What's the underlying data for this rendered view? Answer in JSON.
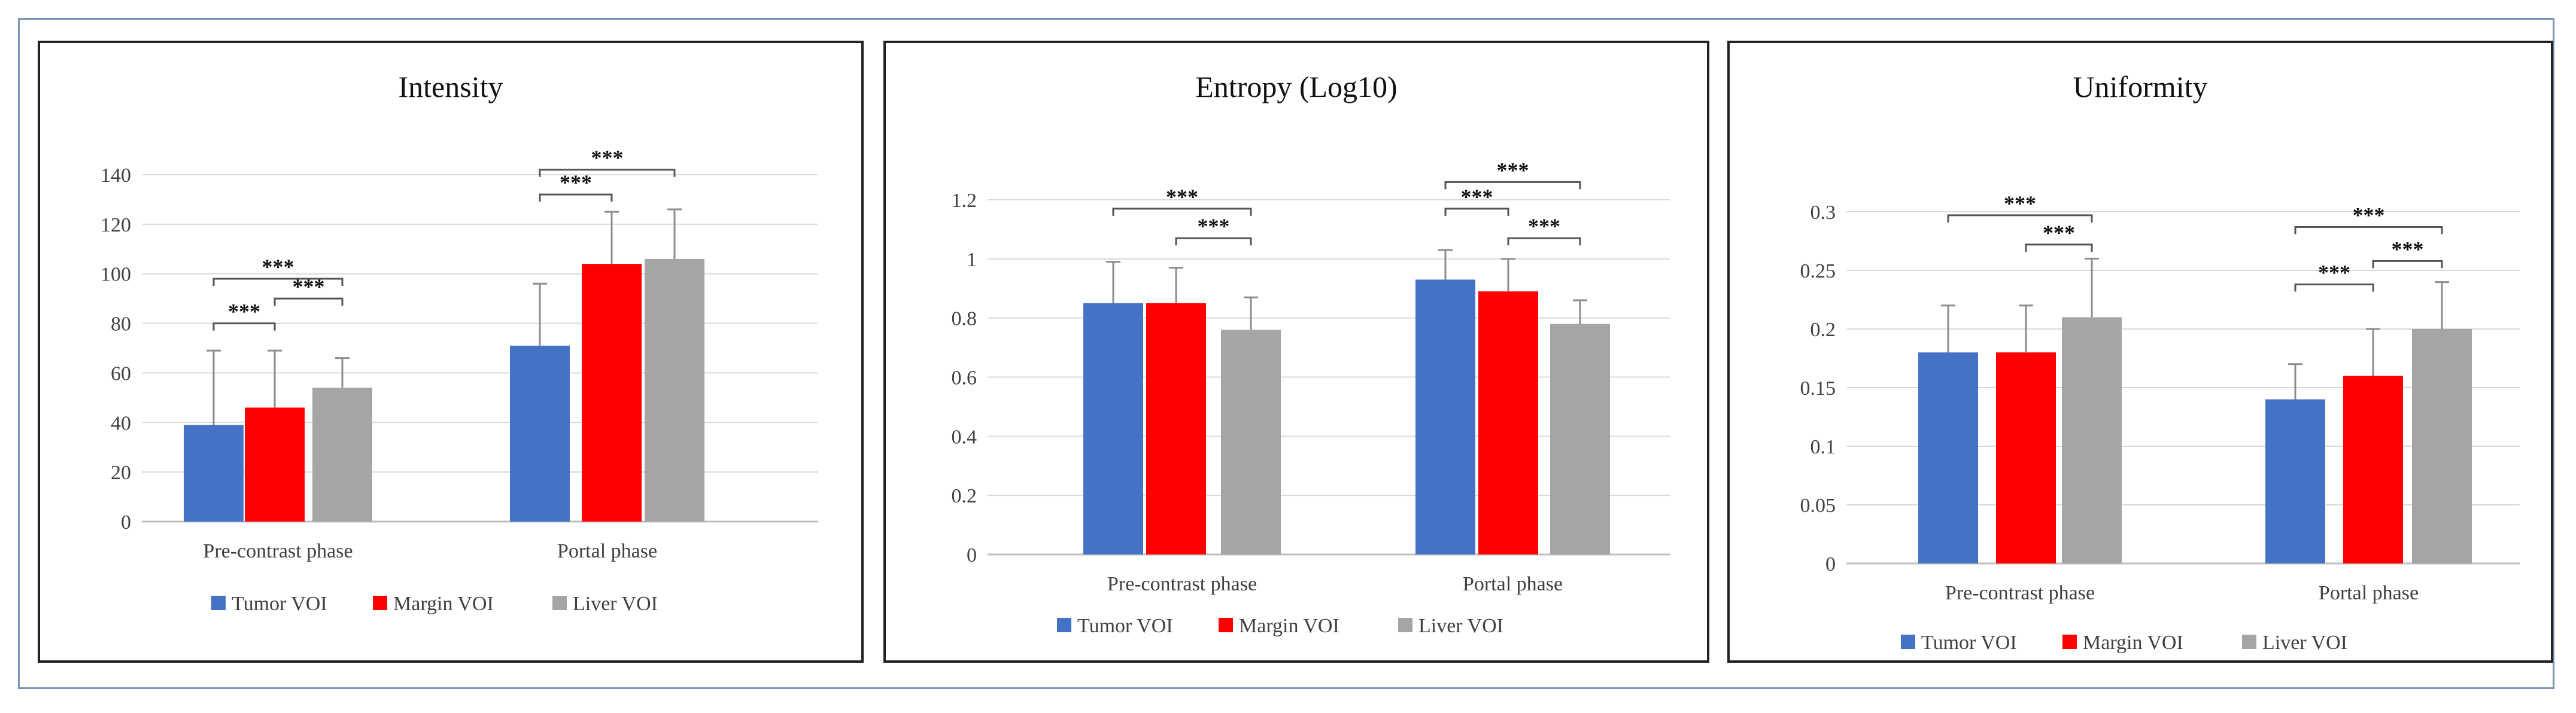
{
  "chart_data": [
    {
      "type": "bar",
      "title": "Intensity",
      "categories": [
        "Pre-contrast phase",
        "Portal phase"
      ],
      "ylim": [
        0,
        140
      ],
      "yticks": [
        0,
        20,
        40,
        60,
        80,
        100,
        120,
        140
      ],
      "ytick_labels": [
        "0",
        "20",
        "40",
        "60",
        "80",
        "100",
        "120",
        "140"
      ],
      "grid": true,
      "legend_position": "bottom",
      "series": [
        {
          "name": "Tumor VOI",
          "color": "#4472C4",
          "values": [
            39,
            71
          ],
          "errors": [
            30,
            25
          ]
        },
        {
          "name": "Margin VOI",
          "color": "#FF0000",
          "values": [
            46,
            104
          ],
          "errors": [
            23,
            21
          ]
        },
        {
          "name": "Liver VOI",
          "color": "#A5A5A5",
          "values": [
            54,
            106
          ],
          "errors": [
            12,
            20
          ]
        }
      ],
      "annotations": [
        {
          "category": 0,
          "from": 0,
          "to": 1,
          "text": "***",
          "level": 80
        },
        {
          "category": 0,
          "from": 1,
          "to": 2,
          "text": "***",
          "level": 90
        },
        {
          "category": 0,
          "from": 0,
          "to": 2,
          "text": "***",
          "level": 98
        },
        {
          "category": 1,
          "from": 0,
          "to": 1,
          "text": "***",
          "level": 132
        },
        {
          "category": 1,
          "from": 0,
          "to": 2,
          "text": "***",
          "level": 142
        }
      ]
    },
    {
      "type": "bar",
      "title": "Entropy (Log10)",
      "categories": [
        "Pre-contrast phase",
        "Portal phase"
      ],
      "ylim": [
        0,
        1.2
      ],
      "yticks": [
        0,
        0.2,
        0.4,
        0.6,
        0.8,
        1.0,
        1.2
      ],
      "ytick_labels": [
        "0",
        "0.2",
        "0.4",
        "0.6",
        "0.8",
        "1",
        "1.2"
      ],
      "grid": true,
      "legend_position": "bottom",
      "series": [
        {
          "name": "Tumor VOI",
          "color": "#4472C4",
          "values": [
            0.85,
            0.93
          ],
          "errors": [
            0.14,
            0.1
          ]
        },
        {
          "name": "Margin VOI",
          "color": "#FF0000",
          "values": [
            0.85,
            0.89
          ],
          "errors": [
            0.12,
            0.11
          ]
        },
        {
          "name": "Liver VOI",
          "color": "#A5A5A5",
          "values": [
            0.76,
            0.78
          ],
          "errors": [
            0.11,
            0.08
          ]
        }
      ],
      "annotations": [
        {
          "category": 0,
          "from": 1,
          "to": 2,
          "text": "***",
          "level": 1.07
        },
        {
          "category": 0,
          "from": 0,
          "to": 2,
          "text": "***",
          "level": 1.17
        },
        {
          "category": 1,
          "from": 0,
          "to": 1,
          "text": "***",
          "level": 1.17
        },
        {
          "category": 1,
          "from": 1,
          "to": 2,
          "text": "***",
          "level": 1.07
        },
        {
          "category": 1,
          "from": 0,
          "to": 2,
          "text": "***",
          "level": 1.26
        }
      ]
    },
    {
      "type": "bar",
      "title": "Uniformity",
      "categories": [
        "Pre-contrast phase",
        "Portal phase"
      ],
      "ylim": [
        0,
        0.3
      ],
      "yticks": [
        0,
        0.05,
        0.1,
        0.15,
        0.2,
        0.25,
        0.3
      ],
      "ytick_labels": [
        "0",
        "0.05",
        "0.1",
        "0.15",
        "0.2",
        "0.25",
        "0.3"
      ],
      "grid": true,
      "legend_position": "bottom",
      "series": [
        {
          "name": "Tumor VOI",
          "color": "#4472C4",
          "values": [
            0.18,
            0.14
          ],
          "errors": [
            0.04,
            0.03
          ]
        },
        {
          "name": "Margin VOI",
          "color": "#FF0000",
          "values": [
            0.18,
            0.16
          ],
          "errors": [
            0.04,
            0.04
          ]
        },
        {
          "name": "Liver VOI",
          "color": "#A5A5A5",
          "values": [
            0.21,
            0.2
          ],
          "errors": [
            0.05,
            0.04
          ]
        }
      ],
      "annotations": [
        {
          "category": 0,
          "from": 1,
          "to": 2,
          "text": "***",
          "level": 0.272
        },
        {
          "category": 0,
          "from": 0,
          "to": 2,
          "text": "***",
          "level": 0.297
        },
        {
          "category": 1,
          "from": 0,
          "to": 1,
          "text": "***",
          "level": 0.238
        },
        {
          "category": 1,
          "from": 1,
          "to": 2,
          "text": "***",
          "level": 0.258
        },
        {
          "category": 1,
          "from": 0,
          "to": 2,
          "text": "***",
          "level": 0.287
        }
      ]
    }
  ]
}
